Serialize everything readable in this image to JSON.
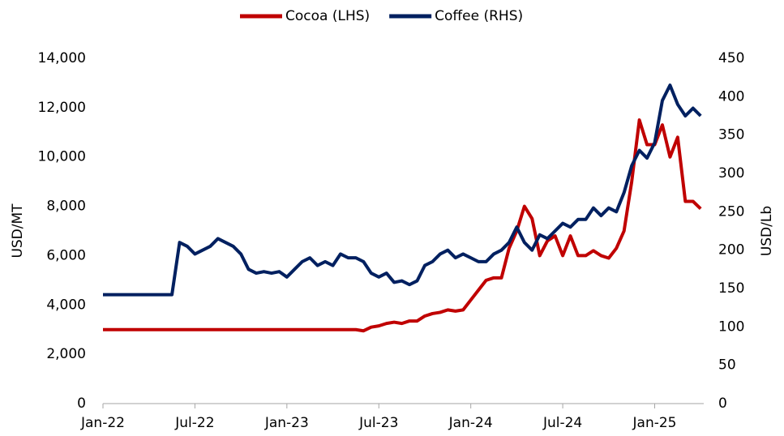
{
  "chart_data": {
    "type": "line",
    "legend": "top",
    "ylabel": "USD/MT",
    "y2label": "USD/Lb",
    "x": [
      0,
      0.5,
      1,
      1.5,
      2,
      2.5,
      3,
      3.5,
      4,
      4.5,
      5,
      5.5,
      6,
      6.5,
      7,
      7.5,
      8,
      8.5,
      9,
      9.5,
      10,
      10.5,
      11,
      11.5,
      12,
      12.5,
      13,
      13.5,
      14,
      14.5,
      15,
      15.5,
      16,
      16.5,
      17,
      17.5,
      18,
      18.5,
      19,
      19.5,
      20,
      20.5,
      21,
      21.5,
      22,
      22.5,
      23,
      23.5,
      24,
      24.5,
      25,
      25.5,
      26,
      26.5,
      27,
      27.5,
      28,
      28.5,
      29,
      29.5,
      30,
      30.5,
      31,
      31.5,
      32,
      32.5,
      33,
      33.5,
      34,
      34.5,
      35,
      35.5,
      36,
      36.5,
      37,
      37.5,
      38,
      38.5,
      39
    ],
    "xlim": [
      0,
      39.2
    ],
    "xticks": [
      {
        "value": 0,
        "label": "Jan-22"
      },
      {
        "value": 6,
        "label": "Jul-22"
      },
      {
        "value": 12,
        "label": "Jan-23"
      },
      {
        "value": 18,
        "label": "Jul-23"
      },
      {
        "value": 24,
        "label": "Jan-24"
      },
      {
        "value": 30,
        "label": "Jul-24"
      },
      {
        "value": 36,
        "label": "Jan-25"
      }
    ],
    "ylim": [
      0,
      14000
    ],
    "yticks": [
      0,
      {
        "value": 2000,
        "label": "2,000"
      },
      {
        "value": 4000,
        "label": "4,000"
      },
      {
        "value": 6000,
        "label": "6,000"
      },
      {
        "value": 8000,
        "label": "8,000"
      },
      {
        "value": 10000,
        "label": "10,000"
      },
      {
        "value": 12000,
        "label": "12,000"
      },
      {
        "value": 14000,
        "label": "14,000"
      }
    ],
    "y2lim": [
      0,
      450
    ],
    "y2ticks": [
      0,
      50,
      100,
      150,
      200,
      250,
      300,
      350,
      400,
      450
    ],
    "series": [
      {
        "name": "Cocoa (LHS)",
        "color": "#c00000",
        "axis": "y",
        "values": [
          3000,
          3000,
          3000,
          3000,
          3000,
          3000,
          3000,
          3000,
          3000,
          3000,
          3000,
          3000,
          3000,
          3000,
          3000,
          3000,
          3000,
          3000,
          3000,
          3000,
          3000,
          3000,
          3000,
          3000,
          3000,
          3000,
          3000,
          3000,
          3000,
          3000,
          3000,
          3000,
          3000,
          3000,
          2950,
          3100,
          3150,
          3250,
          3300,
          3250,
          3350,
          3350,
          3550,
          3650,
          3700,
          3800,
          3750,
          3800,
          4200,
          4600,
          5000,
          5100,
          5100,
          6300,
          7000,
          8000,
          7500,
          6000,
          6600,
          6800,
          6000,
          6800,
          6000,
          6000,
          6200,
          6000,
          5900,
          6300,
          7000,
          9000,
          11500,
          10500,
          10500,
          11300,
          10000,
          10800,
          8200,
          8200,
          7900
        ]
      },
      {
        "name": "Coffee (RHS)",
        "color": "#002060",
        "axis": "y2",
        "values": [
          142,
          142,
          142,
          142,
          142,
          142,
          142,
          142,
          142,
          142,
          210,
          205,
          195,
          200,
          205,
          215,
          210,
          205,
          195,
          175,
          170,
          172,
          170,
          172,
          165,
          175,
          185,
          190,
          180,
          185,
          180,
          195,
          190,
          190,
          185,
          170,
          165,
          170,
          158,
          160,
          155,
          160,
          180,
          185,
          195,
          200,
          190,
          195,
          190,
          185,
          185,
          195,
          200,
          210,
          230,
          210,
          200,
          220,
          215,
          225,
          235,
          230,
          240,
          240,
          255,
          245,
          255,
          250,
          275,
          310,
          330,
          320,
          340,
          395,
          415,
          390,
          375,
          385,
          375
        ]
      }
    ]
  }
}
